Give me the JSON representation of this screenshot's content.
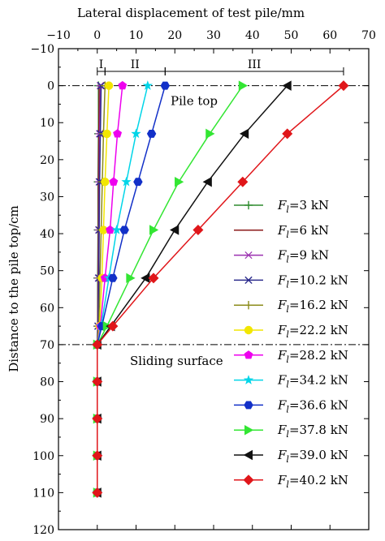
{
  "chart_data": {
    "type": "line",
    "xlabel": "Lateral displacement of test pile/mm",
    "ylabel": "Distance to the pile top/cm",
    "xlim": [
      -10,
      70
    ],
    "ylim": [
      -10,
      120
    ],
    "x_ticks": [
      -10,
      0,
      10,
      20,
      30,
      40,
      50,
      60,
      70
    ],
    "y_ticks": [
      -10,
      0,
      10,
      20,
      30,
      40,
      50,
      60,
      70,
      80,
      90,
      100,
      110,
      120
    ],
    "x_axis_position": "top",
    "y_axis_inverted": true,
    "grid": false,
    "legend_placement": "right",
    "stages": [
      {
        "label": "I",
        "from": 0,
        "to": 2
      },
      {
        "label": "II",
        "from": 2,
        "to": 17.5
      },
      {
        "label": "III",
        "from": 17.5,
        "to": 63.5
      }
    ],
    "reference_lines": [
      {
        "y": 0,
        "label": "Pile top",
        "style": "dash-dot"
      },
      {
        "y": 70,
        "label": "Sliding surface",
        "style": "dash-dot"
      }
    ],
    "depths": [
      0,
      13,
      26,
      39,
      52,
      65,
      70,
      80,
      90,
      100,
      110
    ],
    "series": [
      {
        "name": "F_l=3 kN",
        "legend_prefix": "F",
        "legend_sub": "l",
        "legend_value": "=3 kN",
        "color": "#2e8b2e",
        "marker": "plus",
        "x": [
          0.3,
          0.3,
          0.2,
          0.2,
          0.1,
          0.1,
          0,
          0,
          0,
          0,
          0
        ]
      },
      {
        "name": "F_l=6 kN",
        "legend_prefix": "F",
        "legend_sub": "l",
        "legend_value": "=6 kN",
        "color": "#8b1a1a",
        "marker": "none",
        "x": [
          0.5,
          0.4,
          0.3,
          0.3,
          0.2,
          0.1,
          0,
          0,
          0,
          0,
          0
        ]
      },
      {
        "name": "F_l=9 kN",
        "legend_prefix": "F",
        "legend_sub": "l",
        "legend_value": "=9 kN",
        "color": "#9b30b0",
        "marker": "asterisk",
        "x": [
          0.8,
          0.6,
          0.5,
          0.4,
          0.3,
          0.2,
          0,
          0,
          0,
          0,
          0
        ]
      },
      {
        "name": "F_l=10.2 kN",
        "legend_prefix": "F",
        "legend_sub": "l",
        "legend_value": "=10.2 kN",
        "color": "#2b2b8c",
        "marker": "x",
        "x": [
          1.0,
          0.8,
          0.6,
          0.5,
          0.4,
          0.2,
          0,
          0,
          0,
          0,
          0
        ]
      },
      {
        "name": "F_l=16.2 kN",
        "legend_prefix": "F",
        "legend_sub": "l",
        "legend_value": "=16.2 kN",
        "color": "#8b8b1a",
        "marker": "plus",
        "x": [
          2.0,
          1.6,
          1.3,
          1.0,
          0.7,
          0.4,
          0,
          0,
          0,
          0,
          0
        ]
      },
      {
        "name": "F_l=22.2 kN",
        "legend_prefix": "F",
        "legend_sub": "l",
        "legend_value": "=22.2 kN",
        "color": "#f2e600",
        "marker": "circle",
        "x": [
          3.0,
          2.5,
          2.0,
          1.6,
          1.2,
          0.6,
          0,
          0,
          0,
          0,
          0
        ]
      },
      {
        "name": "F_l=28.2 kN",
        "legend_prefix": "F",
        "legend_sub": "l",
        "legend_value": "=28.2 kN",
        "color": "#ee00ee",
        "marker": "pentagon",
        "x": [
          6.5,
          5.2,
          4.2,
          3.3,
          2.0,
          0.8,
          0,
          0,
          0,
          0,
          0
        ]
      },
      {
        "name": "F_l=34.2 kN",
        "legend_prefix": "F",
        "legend_sub": "l",
        "legend_value": "=34.2 kN",
        "color": "#00d5e8",
        "marker": "star",
        "x": [
          13.0,
          10.0,
          7.5,
          5.0,
          3.0,
          1.0,
          0,
          0,
          0,
          0,
          0
        ]
      },
      {
        "name": "F_l=36.6 kN",
        "legend_prefix": "F",
        "legend_sub": "l",
        "legend_value": "=36.6 kN",
        "color": "#1230c8",
        "marker": "hexagon",
        "x": [
          17.5,
          14.0,
          10.5,
          7.0,
          4.0,
          1.2,
          0,
          0,
          0,
          0,
          0
        ]
      },
      {
        "name": "F_l=37.8 kN",
        "legend_prefix": "F",
        "legend_sub": "l",
        "legend_value": "=37.8 kN",
        "color": "#33e633",
        "marker": "triangle-right",
        "x": [
          37.5,
          29.0,
          21.0,
          14.5,
          8.5,
          2.5,
          0,
          0,
          0,
          0,
          0
        ]
      },
      {
        "name": "F_l=39.0 kN",
        "legend_prefix": "F",
        "legend_sub": "l",
        "legend_value": "=39.0 kN",
        "color": "#111111",
        "marker": "triangle-left",
        "x": [
          49.0,
          38.0,
          28.5,
          20.0,
          12.5,
          3.5,
          0,
          0,
          0,
          0,
          0
        ]
      },
      {
        "name": "F_l=40.2 kN",
        "legend_prefix": "F",
        "legend_sub": "l",
        "legend_value": "=40.2 kN",
        "color": "#e0161a",
        "marker": "diamond",
        "x": [
          63.5,
          49.0,
          37.5,
          26.0,
          14.5,
          4.0,
          0,
          0,
          0,
          0,
          0
        ]
      }
    ]
  }
}
